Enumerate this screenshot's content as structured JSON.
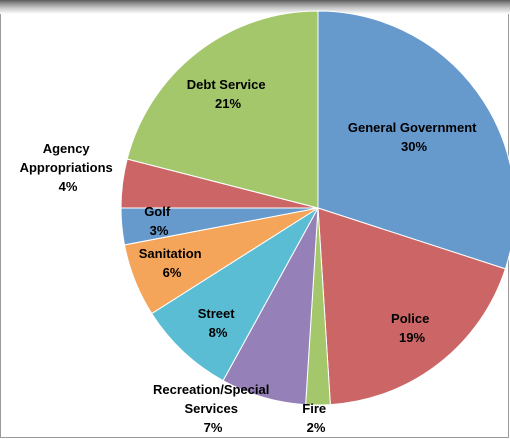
{
  "chart_data": {
    "type": "pie",
    "title": "",
    "slices": [
      {
        "name": "General Government",
        "value": 30,
        "label": "30%",
        "color": "#6699cc"
      },
      {
        "name": "Police",
        "value": 19,
        "label": "19%",
        "color": "#cc6666"
      },
      {
        "name": "Fire",
        "value": 2,
        "label": "2%",
        "color": "#a3c76a"
      },
      {
        "name": "Recreation/Special Services",
        "value": 7,
        "label": "7%",
        "color": "#9580b8"
      },
      {
        "name": "Street",
        "value": 8,
        "label": "8%",
        "color": "#5bbdd3"
      },
      {
        "name": "Sanitation",
        "value": 6,
        "label": "6%",
        "color": "#f5a55a"
      },
      {
        "name": "Golf",
        "value": 3,
        "label": "3%",
        "color": "#6699cc"
      },
      {
        "name": "Agency Appropriations",
        "value": 4,
        "label": "4%",
        "color": "#cc6666"
      },
      {
        "name": "Debt Service",
        "value": 21,
        "label": "21%",
        "color": "#a3c76a"
      }
    ]
  }
}
